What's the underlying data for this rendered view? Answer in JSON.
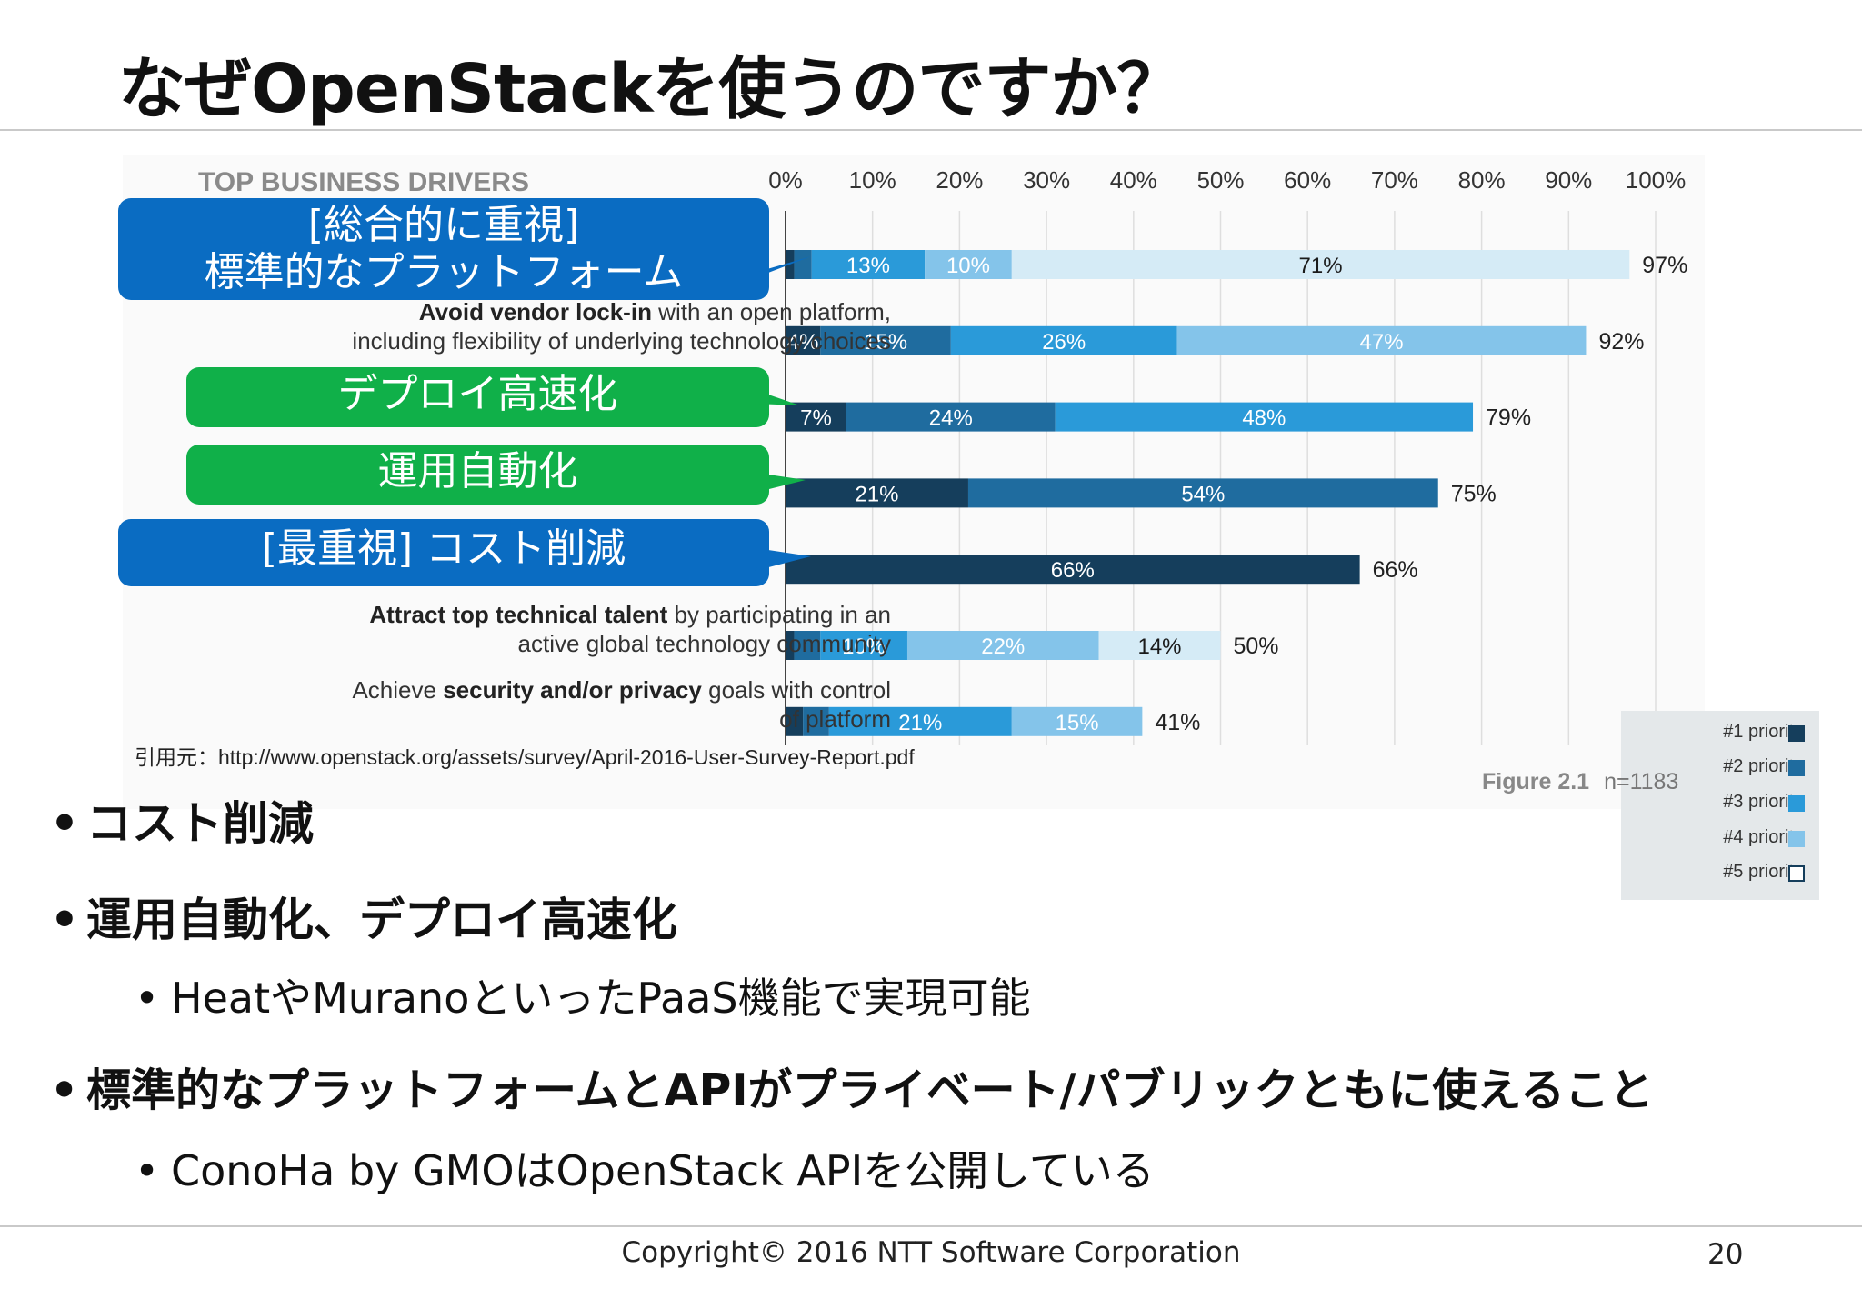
{
  "slide": {
    "title": "なぜOpenStackを使うのですか？",
    "source": "引用元：http://www.openstack.org/assets/survey/April-2016-User-Survey-Report.pdf",
    "footer": "Copyright© 2016 NTT Software Corporation",
    "page_number": "20"
  },
  "callouts": {
    "standard_platform_l1": "[総合的に重視]",
    "standard_platform_l2": "標準的なプラットフォーム",
    "deploy_speed": "デプロイ高速化",
    "automation": "運用自動化",
    "cost": "[最重視] コスト削減"
  },
  "driver_labels": {
    "vendor_bold": "Avoid vendor lock-in",
    "vendor_rest_1": " with an open platform,",
    "vendor_line2": "including flexibility of underlying technology choices",
    "talent_bold": "Attract top technical talent",
    "talent_rest_1": " by participating in an",
    "talent_line2": "active global technology community",
    "security_pre": "Achieve ",
    "security_bold": "security and/or privacy",
    "security_rest_1": " goals with control",
    "security_line2": "of platform"
  },
  "legend": {
    "p1": "#1 priority",
    "p2": "#2 priority",
    "p3": "#3 priority",
    "p4": "#4 priority",
    "p5": "#5 priority"
  },
  "figure": {
    "label": "Figure 2.1",
    "n": "n=1183"
  },
  "colors": {
    "p1": "#153e5c",
    "p2": "#1f6c9f",
    "p3": "#2a9ad9",
    "p4": "#84c4ea",
    "p5": "#d5ebf6",
    "callout_blue": "#0a6cc2",
    "callout_green": "#10b049"
  },
  "bullets": {
    "b1": "コスト削減",
    "b2": "運用自動化、デプロイ高速化",
    "b2_sub": "HeatやMuranoといったPaaS機能で実現可能",
    "b3": "標準的なプラットフォームとAPIがプライベート/パブリックともに使えること",
    "b3_sub": "ConoHa by GMOはOpenStack APIを公開している"
  },
  "chart_data": {
    "type": "bar",
    "orientation": "horizontal-stacked",
    "title": "TOP BUSINESS DRIVERS",
    "xlim": [
      0,
      100
    ],
    "x_ticks": [
      "0%",
      "10%",
      "20%",
      "30%",
      "40%",
      "50%",
      "60%",
      "70%",
      "80%",
      "90%",
      "100%"
    ],
    "series_names": [
      "#1 priority",
      "#2 priority",
      "#3 priority",
      "#4 priority",
      "#5 priority"
    ],
    "rows": [
      {
        "segments": [
          1,
          2,
          13,
          10,
          71
        ],
        "labels": [
          "",
          "",
          "13%",
          "10%",
          "71%"
        ],
        "total": "97%"
      },
      {
        "segments": [
          4,
          15,
          26,
          47,
          0
        ],
        "labels": [
          "4%",
          "15%",
          "26%",
          "47%",
          ""
        ],
        "total": "92%"
      },
      {
        "segments": [
          7,
          24,
          48,
          0,
          0
        ],
        "labels": [
          "7%",
          "24%",
          "48%",
          "",
          ""
        ],
        "total": "79%"
      },
      {
        "segments": [
          21,
          54,
          0,
          0,
          0
        ],
        "labels": [
          "21%",
          "54%",
          "",
          "",
          ""
        ],
        "total": "75%"
      },
      {
        "segments": [
          66,
          0,
          0,
          0,
          0
        ],
        "labels": [
          "66%",
          "",
          "",
          "",
          ""
        ],
        "total": "66%"
      },
      {
        "segments": [
          1,
          3,
          10,
          22,
          14
        ],
        "labels": [
          "",
          "",
          "10%",
          "22%",
          "14%"
        ],
        "total": "50%"
      },
      {
        "segments": [
          2,
          3,
          21,
          15,
          0
        ],
        "labels": [
          "",
          "",
          "21%",
          "15%",
          ""
        ],
        "total": "41%"
      }
    ]
  }
}
